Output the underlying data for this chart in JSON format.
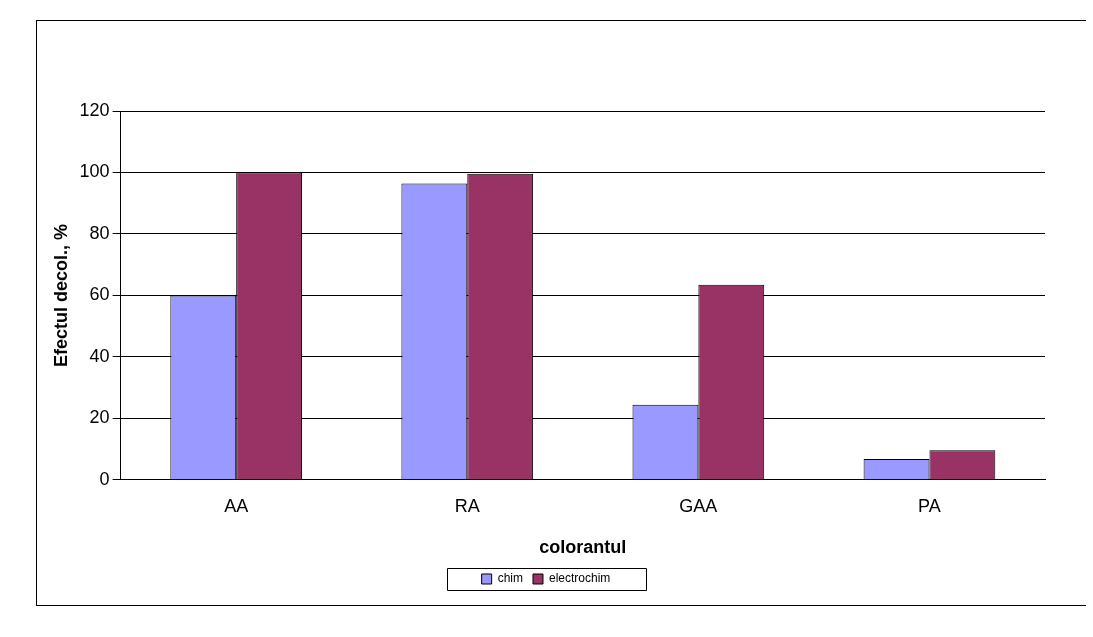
{
  "chart_data": {
    "type": "bar",
    "xlabel": "colorantul",
    "ylabel": "Efectul decol., %",
    "categories": [
      "AA",
      "RA",
      "GAA",
      "PA"
    ],
    "series": [
      {
        "name": "chim",
        "color": "#9999ff",
        "values": [
          60,
          96.4,
          24.4,
          6.8
        ]
      },
      {
        "name": "electrochim",
        "color": "#993366",
        "values": [
          100,
          99.6,
          63.5,
          9.6
        ]
      }
    ],
    "ylim": [
      0,
      120
    ],
    "yticks": [
      0,
      20,
      40,
      60,
      80,
      100,
      120
    ],
    "grid": "y",
    "legend": "bottom"
  }
}
